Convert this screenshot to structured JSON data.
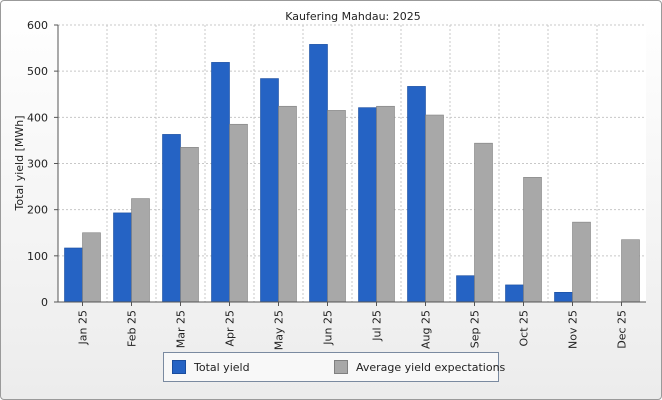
{
  "chart_data": {
    "type": "bar",
    "title": "Kaufering Mahdau: 2025",
    "xlabel": "",
    "ylabel": "Total yield [MWh]",
    "ylim": [
      0,
      600
    ],
    "yticks": [
      0,
      100,
      200,
      300,
      400,
      500,
      600
    ],
    "grid": true,
    "legend_position": "bottom",
    "categories": [
      "Jan 25",
      "Feb 25",
      "Mar 25",
      "Apr 25",
      "May 25",
      "Jun 25",
      "Jul 25",
      "Aug 25",
      "Sep 25",
      "Oct 25",
      "Nov 25",
      "Dec 25"
    ],
    "series": [
      {
        "name": "Total yield",
        "color": "#2563c4",
        "values": [
          117,
          193,
          363,
          519,
          484,
          558,
          421,
          467,
          57,
          37,
          21,
          null
        ]
      },
      {
        "name": "Average yield expectations",
        "color": "#a8a8a8",
        "values": [
          150,
          224,
          335,
          385,
          424,
          415,
          424,
          405,
          344,
          270,
          173,
          135
        ]
      }
    ]
  }
}
